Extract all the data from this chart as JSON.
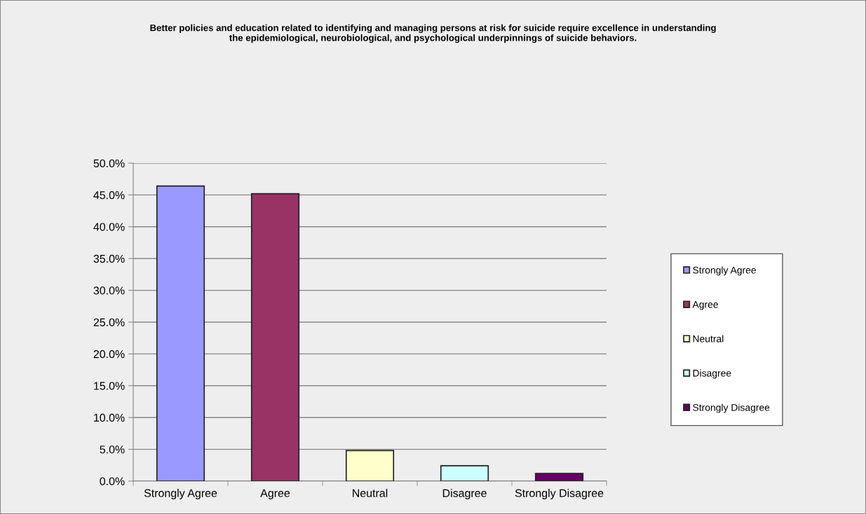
{
  "chart_data": {
    "type": "bar",
    "title": "Better policies and education related to identifying and managing persons at risk for suicide require excellence in understanding\nthe epidemiological, neurobiological, and psychological underpinnings of suicide behaviors.",
    "categories": [
      "Strongly Agree",
      "Agree",
      "Neutral",
      "Disagree",
      "Strongly Disagree"
    ],
    "series": [
      {
        "name": "Strongly Agree",
        "color": "#9999ff",
        "values": [
          46.4,
          null,
          null,
          null,
          null
        ]
      },
      {
        "name": "Agree",
        "color": "#993366",
        "values": [
          null,
          45.2,
          null,
          null,
          null
        ]
      },
      {
        "name": "Neutral",
        "color": "#ffffcc",
        "values": [
          null,
          null,
          4.8,
          null,
          null
        ]
      },
      {
        "name": "Disagree",
        "color": "#ccffff",
        "values": [
          null,
          null,
          null,
          2.4,
          null
        ]
      },
      {
        "name": "Strongly Disagree",
        "color": "#660066",
        "values": [
          null,
          null,
          null,
          null,
          1.2
        ]
      }
    ],
    "ylim": [
      0,
      50
    ],
    "yticks": [
      {
        "value": 0,
        "label": "0.0%"
      },
      {
        "value": 5,
        "label": "5.0%"
      },
      {
        "value": 10,
        "label": "10.0%"
      },
      {
        "value": 15,
        "label": "15.0%"
      },
      {
        "value": 20,
        "label": "20.0%"
      },
      {
        "value": 25,
        "label": "25.0%"
      },
      {
        "value": 30,
        "label": "30.0%"
      },
      {
        "value": 35,
        "label": "35.0%"
      },
      {
        "value": 40,
        "label": "40.0%"
      },
      {
        "value": 45,
        "label": "45.0%"
      },
      {
        "value": 50,
        "label": "50.0%"
      }
    ],
    "grid": "y",
    "legend": "right"
  }
}
